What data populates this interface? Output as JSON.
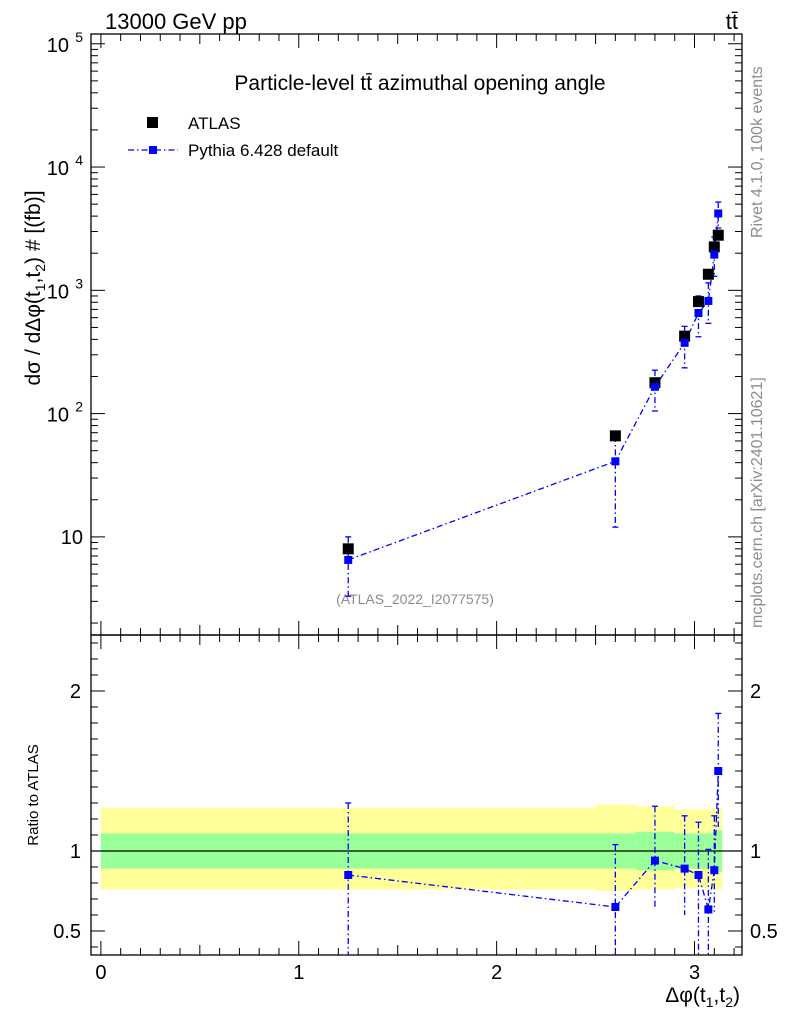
{
  "header": {
    "energy_label": "13000 GeV pp",
    "process_label": "tt̄"
  },
  "side_labels": {
    "rivet": "Rivet 4.1.0,  100k events",
    "mcplots": "mcplots.cern.ch [arXiv:2401.10621]"
  },
  "colors": {
    "data": "#000000",
    "mc": "#0000ff",
    "band_inner": "#99ff99",
    "band_outer": "#ffff99"
  },
  "chart_data": [
    {
      "type": "scatter",
      "panel": "main",
      "title": "Particle-level tt̄ azimuthal opening angle",
      "ylabel": "dσ / dΔφ(t1,t2) # [(fb)]",
      "yscale": "log",
      "ylim": [
        1.6,
        120000
      ],
      "xlim": [
        -0.05,
        3.24
      ],
      "ytick_labels": [
        "10",
        "10^2",
        "10^3",
        "10^4",
        "10^5"
      ],
      "watermark": "(ATLAS_2022_I2077575)",
      "legend": [
        "ATLAS",
        "Pythia 6.428 default"
      ],
      "legend_position": "top-left",
      "series": [
        {
          "name": "ATLAS",
          "style": "markers",
          "x": [
            1.25,
            2.6,
            2.8,
            2.95,
            3.02,
            3.07,
            3.1,
            3.12
          ],
          "y": [
            8.0,
            66,
            178,
            425,
            810,
            1350,
            2250,
            2800
          ]
        },
        {
          "name": "Pythia 6.428 default",
          "style": "line-markers",
          "x": [
            1.25,
            2.6,
            2.8,
            2.95,
            3.02,
            3.07,
            3.1,
            3.12
          ],
          "y": [
            6.5,
            41,
            165,
            375,
            655,
            820,
            1950,
            4200
          ],
          "y_low": [
            3.3,
            12,
            105,
            235,
            420,
            540,
            1300,
            3200
          ],
          "y_high": [
            10,
            66,
            225,
            510,
            900,
            1150,
            2700,
            5200
          ]
        }
      ]
    },
    {
      "type": "scatter",
      "panel": "ratio",
      "ylabel": "Ratio to ATLAS",
      "xlabel": "Δφ(t1,t2)",
      "ylim": [
        0.35,
        2.35
      ],
      "xlim": [
        -0.05,
        3.24
      ],
      "xtick_labels": [
        "0",
        "1",
        "2",
        "3"
      ],
      "ytick_labels": [
        "0.5",
        "1",
        "2"
      ],
      "reference_line": 1.0,
      "uncertainty_bands": {
        "x_edges": [
          0.0,
          2.5,
          2.7,
          2.9,
          3.0,
          3.05,
          3.09,
          3.11,
          3.14
        ],
        "inner_low": [
          0.89,
          0.89,
          0.88,
          0.89,
          0.89,
          0.89,
          0.88,
          0.87
        ],
        "inner_high": [
          1.11,
          1.11,
          1.12,
          1.11,
          1.11,
          1.11,
          1.12,
          1.13
        ],
        "outer_low": [
          0.76,
          0.75,
          0.76,
          0.77,
          0.77,
          0.77,
          0.76,
          0.76
        ],
        "outer_high": [
          1.27,
          1.29,
          1.28,
          1.26,
          1.26,
          1.26,
          1.27,
          1.27
        ]
      },
      "series": [
        {
          "name": "Pythia 6.428 default",
          "x": [
            1.25,
            2.6,
            2.8,
            2.95,
            3.02,
            3.07,
            3.1,
            3.12
          ],
          "y": [
            0.85,
            0.65,
            0.94,
            0.89,
            0.85,
            0.635,
            0.88,
            1.5
          ],
          "y_low": [
            0.35,
            0.35,
            0.64,
            0.6,
            0.35,
            0.35,
            0.62,
            1.15
          ],
          "y_high": [
            1.3,
            1.04,
            1.28,
            1.22,
            1.18,
            1.01,
            1.22,
            1.86
          ]
        }
      ]
    }
  ]
}
